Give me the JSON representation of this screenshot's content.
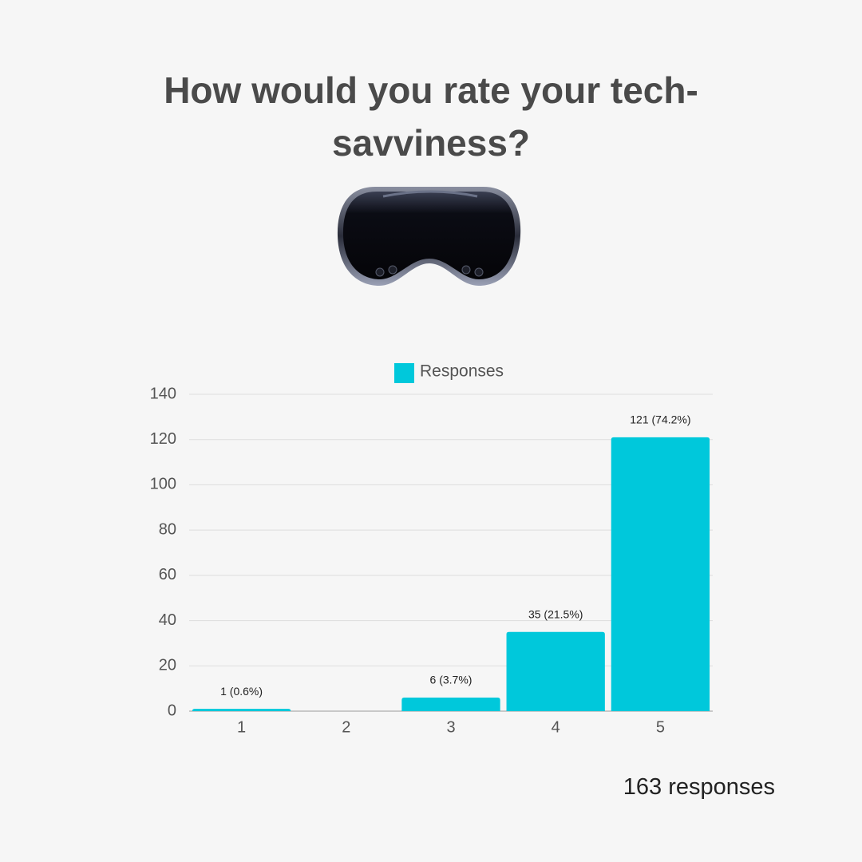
{
  "chart_data": {
    "type": "bar",
    "title": "How would you rate your tech-savviness?",
    "categories": [
      "1",
      "2",
      "3",
      "4",
      "5"
    ],
    "series": [
      {
        "name": "Responses",
        "color": "#00c8db",
        "values": [
          1,
          0,
          6,
          35,
          121
        ],
        "value_labels": [
          "1 (0.6%)",
          null,
          "6 (3.7%)",
          "35 (21.5%)",
          "121 (74.2%)"
        ]
      }
    ],
    "ylim": [
      0,
      140
    ],
    "yticks": [
      0,
      20,
      40,
      60,
      80,
      100,
      120,
      140
    ],
    "grid": true,
    "legend": "top",
    "note": "163 responses"
  }
}
